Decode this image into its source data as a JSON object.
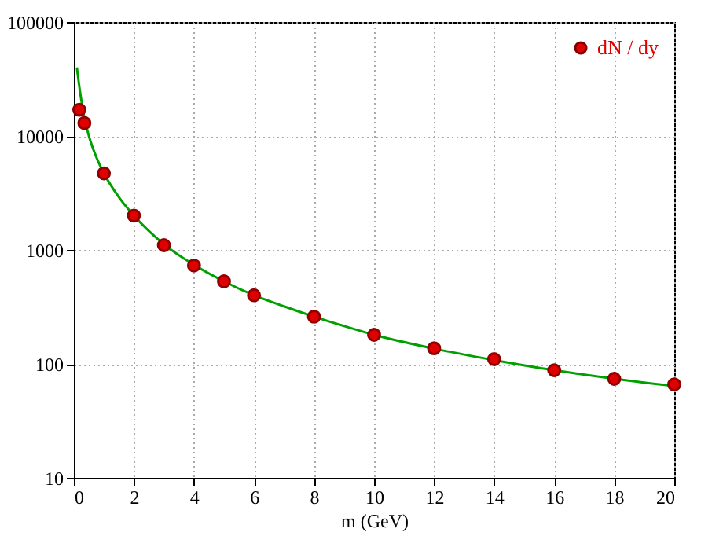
{
  "chart_data": {
    "type": "scatter",
    "xlabel": "m  (GeV)",
    "xlim": [
      0,
      20
    ],
    "xticks": [
      0,
      2,
      4,
      6,
      8,
      10,
      12,
      14,
      16,
      18,
      20
    ],
    "ylim": [
      10,
      100000
    ],
    "yticks": [
      10,
      100,
      1000,
      10000,
      100000
    ],
    "log": "y",
    "grid": true,
    "legend": "top right",
    "series": [
      {
        "name": "dN / dy",
        "marker": "circle",
        "color": "#e00000",
        "x": [
          0.18,
          0.35,
          1,
          2,
          3,
          4,
          5,
          6,
          8,
          10,
          12,
          14,
          16,
          18,
          20
        ],
        "values": [
          17000,
          13000,
          4700,
          2000,
          1100,
          730,
          530,
          400,
          260,
          180,
          137,
          110,
          88,
          74,
          66
        ]
      },
      {
        "type": "line",
        "color": "#00a000",
        "x": [
          0.1,
          0.2,
          0.35,
          0.5,
          0.75,
          1,
          1.5,
          2,
          3,
          4,
          5,
          6,
          7,
          8,
          9,
          10,
          12,
          14,
          16,
          18,
          20
        ],
        "values": [
          40000,
          25000,
          14500,
          10000,
          6500,
          4700,
          2900,
          2000,
          1120,
          740,
          530,
          400,
          320,
          260,
          215,
          180,
          136,
          108,
          88,
          74,
          64
        ]
      }
    ]
  }
}
